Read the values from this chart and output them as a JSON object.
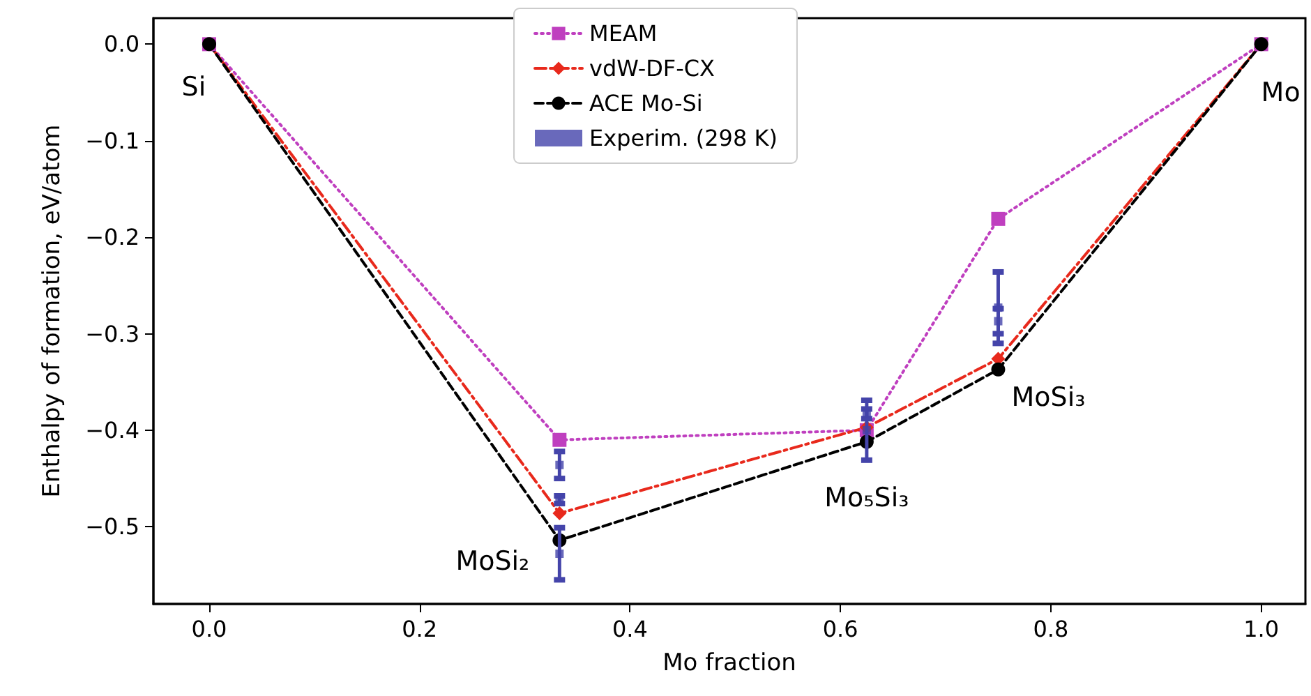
{
  "chart_data": {
    "type": "line",
    "xlabel": "Mo fraction",
    "ylabel": "Enthalpy of formation, eV/atom",
    "xlim": [
      -0.053,
      1.042
    ],
    "ylim": [
      -0.58,
      0.027
    ],
    "xticks": [
      {
        "value": 0,
        "label": "0.0"
      },
      {
        "value": 0.2,
        "label": "0.2"
      },
      {
        "value": 0.4,
        "label": "0.4"
      },
      {
        "value": 0.6,
        "label": "0.6"
      },
      {
        "value": 0.8,
        "label": "0.8"
      },
      {
        "value": 1,
        "label": "1.0"
      }
    ],
    "yticks": [
      {
        "value": 0,
        "label": "0.0"
      },
      {
        "value": -0.1,
        "label": "−0.1"
      },
      {
        "value": -0.2,
        "label": "−0.2"
      },
      {
        "value": -0.3,
        "label": "−0.3"
      },
      {
        "value": -0.4,
        "label": "−0.4"
      },
      {
        "value": -0.5,
        "label": "−0.5"
      }
    ],
    "x": [
      0,
      0.333,
      0.625,
      0.75,
      1
    ],
    "grid": false,
    "legend": "top",
    "series": [
      {
        "name": "MEAM",
        "color": "#bf3fbf",
        "marker": "square",
        "line_style": "dotted",
        "values": [
          0,
          -0.41,
          -0.4,
          -0.181,
          0
        ]
      },
      {
        "name": "vdW-DF-CX",
        "color": "#e8291c",
        "marker": "diamond",
        "line_style": "dashdot",
        "values": [
          0,
          -0.486,
          -0.397,
          -0.326,
          0
        ]
      },
      {
        "name": "ACE Mo-Si",
        "color": "#000000",
        "marker": "circle",
        "line_style": "dashed",
        "values": [
          0,
          -0.514,
          -0.412,
          -0.337,
          0
        ]
      },
      {
        "name": "Experim. (298 K)",
        "type": "scatter",
        "color": "#4444aa",
        "marker": "square",
        "x": [
          0.333,
          0.333,
          0.333,
          0.625,
          0.625,
          0.75,
          0.75
        ],
        "values": [
          -0.436,
          -0.472,
          -0.528,
          -0.4,
          -0.383,
          -0.273,
          -0.287
        ],
        "errors": [
          0.014,
          0.004,
          0.027,
          0.031,
          0.005,
          0.037,
          0.013
        ]
      }
    ],
    "annotations": [
      {
        "text": "Si",
        "x": 0,
        "y": 0
      },
      {
        "text": "Mo",
        "x": 1,
        "y": 0
      },
      {
        "text": "MoSi₂",
        "x": 0.333,
        "y": -0.514
      },
      {
        "text": "Mo₅Si₃",
        "x": 0.625,
        "y": -0.412
      },
      {
        "text": "MoSi₃",
        "x": 0.75,
        "y": -0.337
      }
    ]
  }
}
